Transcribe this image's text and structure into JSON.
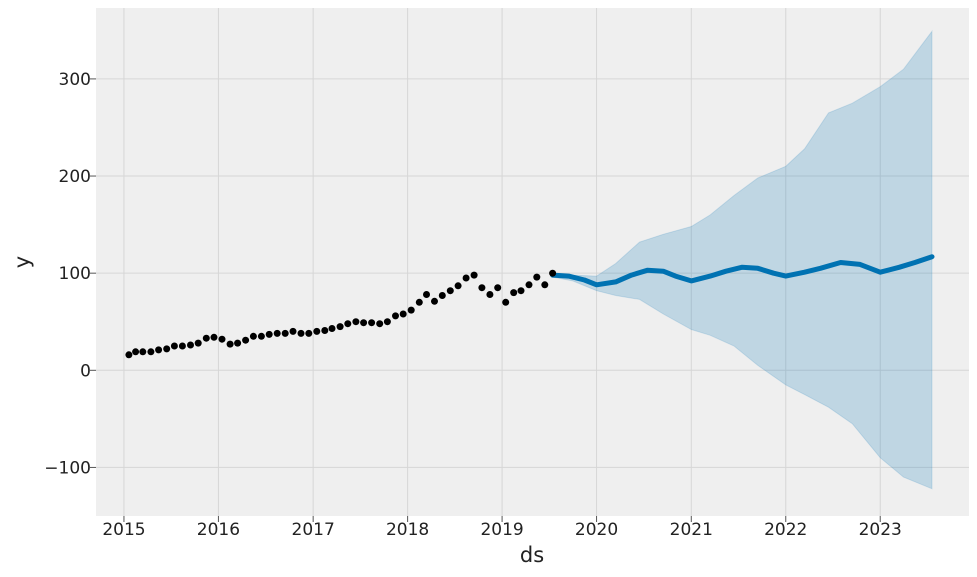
{
  "chart_data": {
    "type": "line",
    "title": "",
    "xlabel": "ds",
    "ylabel": "y",
    "x_ticks": [
      "2015",
      "2016",
      "2017",
      "2018",
      "2019",
      "2020",
      "2021",
      "2022",
      "2023"
    ],
    "y_ticks": [
      -100,
      0,
      100,
      200,
      300
    ],
    "y_tick_labels": [
      "−100",
      "0",
      "100",
      "200",
      "300"
    ],
    "xlim": [
      "2014-09-15",
      "2023-12-10"
    ],
    "ylim": [
      -150,
      373
    ],
    "grid": true,
    "colors": {
      "background": "#efefef",
      "grid": "#d6d6d6",
      "observed": "#000000",
      "forecast": "#0072b2",
      "interval": "#0072b2"
    },
    "series": [
      {
        "role": "observed",
        "x": [
          "2015-01-20",
          "2015-02-15",
          "2015-03-15",
          "2015-04-15",
          "2015-05-15",
          "2015-06-15",
          "2015-07-15",
          "2015-08-15",
          "2015-09-15",
          "2015-10-15",
          "2015-11-15",
          "2015-12-15",
          "2016-01-15",
          "2016-02-15",
          "2016-03-15",
          "2016-04-15",
          "2016-05-15",
          "2016-06-15",
          "2016-07-15",
          "2016-08-15",
          "2016-09-15",
          "2016-10-15",
          "2016-11-15",
          "2016-12-15",
          "2017-01-15",
          "2017-02-15",
          "2017-03-15",
          "2017-04-15",
          "2017-05-15",
          "2017-06-15",
          "2017-07-15",
          "2017-08-15",
          "2017-09-15",
          "2017-10-15",
          "2017-11-15",
          "2017-12-15",
          "2018-01-15",
          "2018-02-15",
          "2018-03-15",
          "2018-04-15",
          "2018-05-15",
          "2018-06-15",
          "2018-07-15",
          "2018-08-15",
          "2018-09-15",
          "2018-10-15",
          "2018-11-15",
          "2018-12-15",
          "2019-01-15",
          "2019-02-15",
          "2019-03-15",
          "2019-04-15",
          "2019-05-15",
          "2019-06-15",
          "2019-07-15"
        ],
        "y": [
          16,
          19,
          19,
          19,
          21,
          22,
          25,
          25,
          26,
          28,
          33,
          34,
          32,
          27,
          28,
          31,
          35,
          35,
          37,
          38,
          38,
          40,
          38,
          38,
          40,
          41,
          43,
          45,
          48,
          50,
          49,
          49,
          48,
          50,
          56,
          58,
          62,
          70,
          78,
          71,
          77,
          82,
          87,
          95,
          98,
          85,
          78,
          85,
          70,
          80,
          82,
          88,
          96,
          88,
          100
        ]
      },
      {
        "role": "forecast",
        "x": [
          "2019-07-15",
          "2019-09-15",
          "2019-11-15",
          "2020-01-01",
          "2020-03-15",
          "2020-05-15",
          "2020-07-15",
          "2020-09-15",
          "2020-11-01",
          "2021-01-01",
          "2021-03-15",
          "2021-05-15",
          "2021-07-15",
          "2021-09-15",
          "2021-11-15",
          "2022-01-01",
          "2022-03-15",
          "2022-05-15",
          "2022-08-01",
          "2022-10-15",
          "2023-01-01",
          "2023-03-15",
          "2023-05-15",
          "2023-07-20"
        ],
        "y": [
          98,
          97,
          93,
          88,
          91,
          98,
          103,
          102,
          97,
          92,
          97,
          102,
          106,
          105,
          100,
          97,
          101,
          105,
          111,
          109,
          101,
          106,
          111,
          117
        ]
      }
    ],
    "interval": {
      "x": [
        "2019-07-15",
        "2019-10-01",
        "2020-01-01",
        "2020-03-15",
        "2020-06-15",
        "2020-09-15",
        "2021-01-01",
        "2021-03-15",
        "2021-06-15",
        "2021-09-15",
        "2022-01-01",
        "2022-03-15",
        "2022-06-15",
        "2022-09-15",
        "2023-01-01",
        "2023-04-01",
        "2023-07-20"
      ],
      "upper": [
        100,
        98,
        97,
        110,
        132,
        140,
        148,
        160,
        180,
        198,
        210,
        228,
        265,
        275,
        292,
        310,
        349
      ],
      "lower": [
        96,
        92,
        82,
        77,
        73,
        58,
        42,
        36,
        25,
        5,
        -15,
        -25,
        -38,
        -55,
        -90,
        -110,
        -122
      ]
    }
  }
}
